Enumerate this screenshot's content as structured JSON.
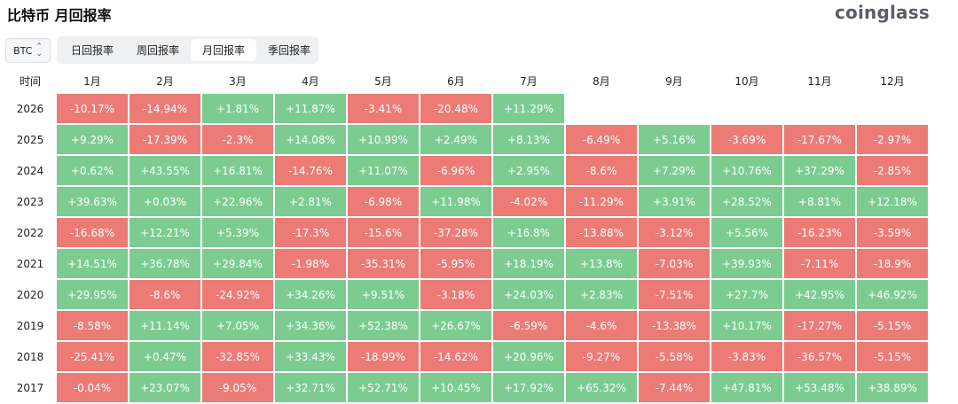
{
  "page_title": "比特币 月回报率",
  "brand": "coinglass",
  "asset_select": {
    "value": "BTC"
  },
  "tabs": [
    {
      "label": "日回报率",
      "active": false
    },
    {
      "label": "周回报率",
      "active": false
    },
    {
      "label": "月回报率",
      "active": true
    },
    {
      "label": "季回报率",
      "active": false
    }
  ],
  "colors": {
    "positive": "#7ccc92",
    "negative": "#ec7b76"
  },
  "table": {
    "time_header": "时间",
    "month_headers": [
      "1月",
      "2月",
      "3月",
      "4月",
      "5月",
      "6月",
      "7月",
      "8月",
      "9月",
      "10月",
      "11月",
      "12月"
    ],
    "rows": [
      {
        "year": "2026",
        "values": [
          "-10.17%",
          "-14.94%",
          "+1.81%",
          "+11.87%",
          "-3.41%",
          "-20.48%",
          "+11.29%",
          "",
          "",
          "",
          "",
          ""
        ]
      },
      {
        "year": "2025",
        "values": [
          "+9.29%",
          "-17.39%",
          "-2.3%",
          "+14.08%",
          "+10.99%",
          "+2.49%",
          "+8.13%",
          "-6.49%",
          "+5.16%",
          "-3.69%",
          "-17.67%",
          "-2.97%"
        ]
      },
      {
        "year": "2024",
        "values": [
          "+0.62%",
          "+43.55%",
          "+16.81%",
          "-14.76%",
          "+11.07%",
          "-6.96%",
          "+2.95%",
          "-8.6%",
          "+7.29%",
          "+10.76%",
          "+37.29%",
          "-2.85%"
        ]
      },
      {
        "year": "2023",
        "values": [
          "+39.63%",
          "+0.03%",
          "+22.96%",
          "+2.81%",
          "-6.98%",
          "+11.98%",
          "-4.02%",
          "-11.29%",
          "+3.91%",
          "+28.52%",
          "+8.81%",
          "+12.18%"
        ]
      },
      {
        "year": "2022",
        "values": [
          "-16.68%",
          "+12.21%",
          "+5.39%",
          "-17.3%",
          "-15.6%",
          "-37.28%",
          "+16.8%",
          "-13.88%",
          "-3.12%",
          "+5.56%",
          "-16.23%",
          "-3.59%"
        ]
      },
      {
        "year": "2021",
        "values": [
          "+14.51%",
          "+36.78%",
          "+29.84%",
          "-1.98%",
          "-35.31%",
          "-5.95%",
          "+18.19%",
          "+13.8%",
          "-7.03%",
          "+39.93%",
          "-7.11%",
          "-18.9%"
        ]
      },
      {
        "year": "2020",
        "values": [
          "+29.95%",
          "-8.6%",
          "-24.92%",
          "+34.26%",
          "+9.51%",
          "-3.18%",
          "+24.03%",
          "+2.83%",
          "-7.51%",
          "+27.7%",
          "+42.95%",
          "+46.92%"
        ]
      },
      {
        "year": "2019",
        "values": [
          "-8.58%",
          "+11.14%",
          "+7.05%",
          "+34.36%",
          "+52.38%",
          "+26.67%",
          "-6.59%",
          "-4.6%",
          "-13.38%",
          "+10.17%",
          "-17.27%",
          "-5.15%"
        ]
      },
      {
        "year": "2018",
        "values": [
          "-25.41%",
          "+0.47%",
          "-32.85%",
          "+33.43%",
          "-18.99%",
          "-14.62%",
          "+20.96%",
          "-9.27%",
          "-5.58%",
          "-3.83%",
          "-36.57%",
          "-5.15%"
        ]
      },
      {
        "year": "2017",
        "values": [
          "-0.04%",
          "+23.07%",
          "-9.05%",
          "+32.71%",
          "+52.71%",
          "+10.45%",
          "+17.92%",
          "+65.32%",
          "-7.44%",
          "+47.81%",
          "+53.48%",
          "+38.89%"
        ]
      }
    ]
  }
}
